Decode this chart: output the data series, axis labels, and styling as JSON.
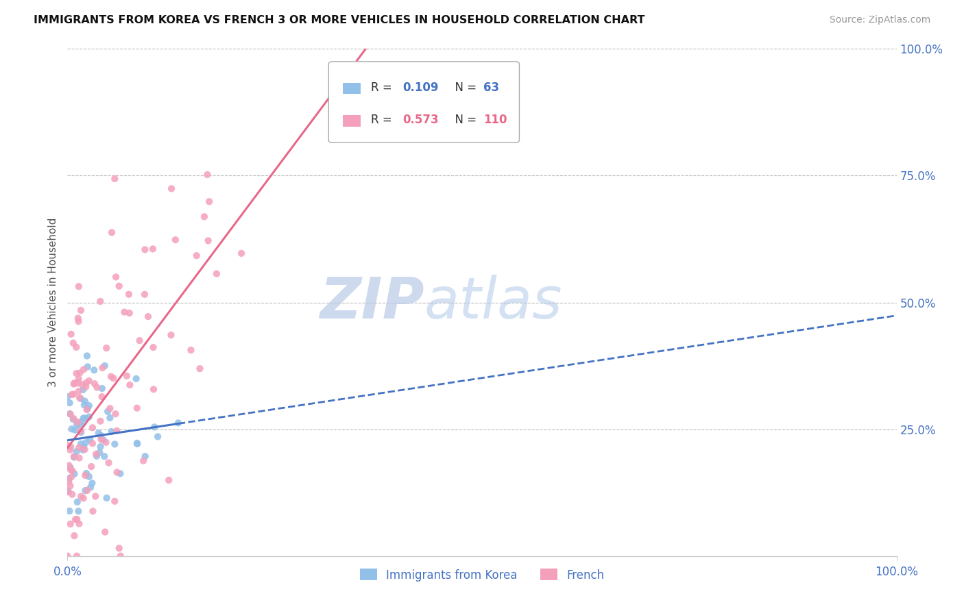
{
  "title": "IMMIGRANTS FROM KOREA VS FRENCH 3 OR MORE VEHICLES IN HOUSEHOLD CORRELATION CHART",
  "source": "Source: ZipAtlas.com",
  "ylabel": "3 or more Vehicles in Household",
  "legend_label1": "Immigrants from Korea",
  "legend_label2": "French",
  "r1": 0.109,
  "n1": 63,
  "r2": 0.573,
  "n2": 110,
  "color_blue": "#92C0E8",
  "color_pink": "#F4A0BB",
  "color_blue_text": "#4472C4",
  "color_pink_text": "#E8688A",
  "color_grid": "#BBBBBB",
  "watermark_color": "#C8D8F0",
  "xlim": [
    0,
    100
  ],
  "ylim": [
    0,
    100
  ],
  "yticks": [
    25,
    50,
    75,
    100
  ],
  "ytick_labels": [
    "25.0%",
    "50.0%",
    "75.0%",
    "100.0%"
  ]
}
